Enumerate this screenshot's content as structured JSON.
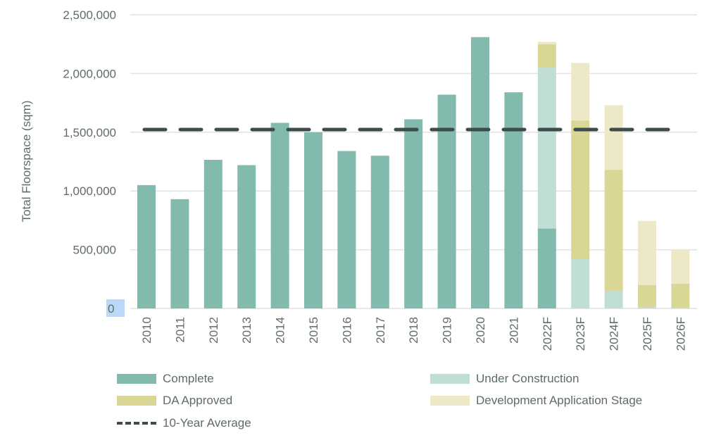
{
  "chart_data": {
    "type": "bar",
    "stacked": true,
    "ylabel": "Total Floorspace (sqm)",
    "ylim": [
      0,
      2500000
    ],
    "yticks": [
      "0",
      "500,000",
      "1,000,000",
      "1,500,000",
      "2,000,000",
      "2,500,000"
    ],
    "ytick_values": [
      0,
      500000,
      1000000,
      1500000,
      2000000,
      2500000
    ],
    "grid": true,
    "legend_position": "bottom",
    "categories": [
      "2010",
      "2011",
      "2012",
      "2013",
      "2014",
      "2015",
      "2016",
      "2017",
      "2018",
      "2019",
      "2020",
      "2021",
      "2022F",
      "2023F",
      "2024F",
      "2025F",
      "2026F"
    ],
    "series": [
      {
        "name": "Complete",
        "color": "#82bbad",
        "values": [
          1050000,
          930000,
          1265000,
          1220000,
          1580000,
          1500000,
          1340000,
          1300000,
          1610000,
          1820000,
          2310000,
          1840000,
          680000,
          0,
          0,
          0,
          0
        ]
      },
      {
        "name": "Under Construction",
        "color": "#c0ddd6",
        "values": [
          0,
          0,
          0,
          0,
          0,
          0,
          0,
          0,
          0,
          0,
          0,
          0,
          1370000,
          420000,
          150000,
          10000,
          0
        ]
      },
      {
        "name": "DA Approved",
        "color": "#d9d696",
        "values": [
          0,
          0,
          0,
          0,
          0,
          0,
          0,
          0,
          0,
          0,
          0,
          0,
          200000,
          1180000,
          1030000,
          190000,
          210000
        ]
      },
      {
        "name": "Development Application Stage",
        "color": "#ede9c6",
        "values": [
          0,
          0,
          0,
          0,
          0,
          0,
          0,
          0,
          0,
          0,
          0,
          0,
          20000,
          490000,
          550000,
          545000,
          290000
        ]
      }
    ],
    "reference_line": {
      "name": "10-Year Average",
      "value": 1523000,
      "color": "#3d4b4b",
      "style": "dashed"
    }
  }
}
